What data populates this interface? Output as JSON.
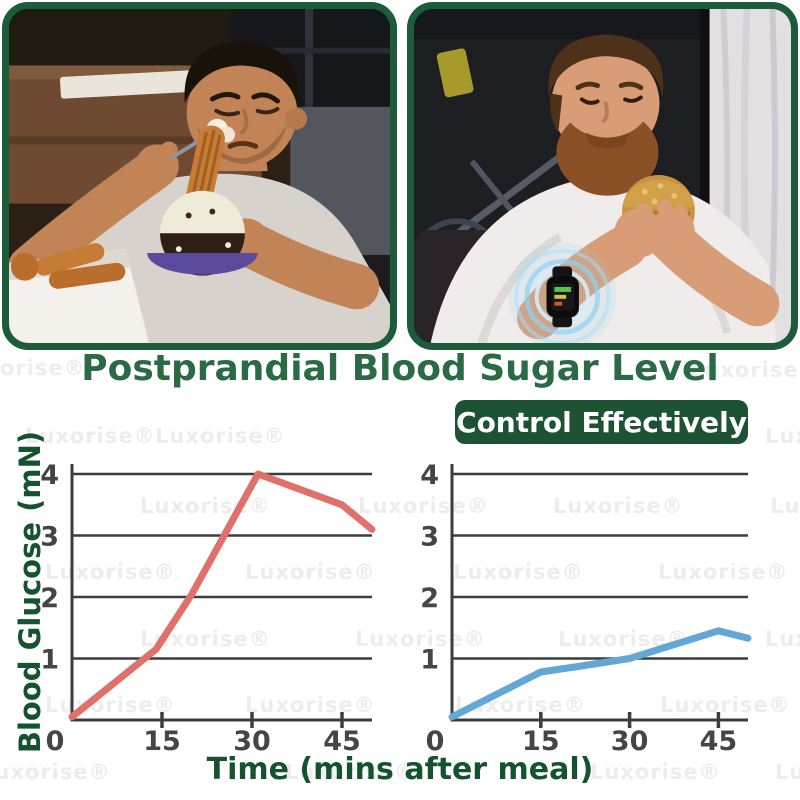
{
  "header": {
    "title": "Postprandial Blood Sugar Level",
    "badge_label": "Control Effectively"
  },
  "axis_labels": {
    "y": "Blood Glucose (mN)",
    "x": "Time (mins after meal)"
  },
  "photos": {
    "left": "Man frowning while eating churros and a cream dessert on a couch",
    "right": "Bearded man eating a burger while wearing a glowing smartwatch monitor"
  },
  "watermark": {
    "text": "Luxorise®",
    "color": "#ededed",
    "positions": [
      [
        -45,
        356
      ],
      [
        690,
        358
      ],
      [
        25,
        424
      ],
      [
        155,
        424
      ],
      [
        765,
        424
      ],
      [
        140,
        494
      ],
      [
        358,
        494
      ],
      [
        553,
        494
      ],
      [
        770,
        494
      ],
      [
        45,
        560
      ],
      [
        245,
        560
      ],
      [
        453,
        560
      ],
      [
        658,
        560
      ],
      [
        140,
        627
      ],
      [
        355,
        627
      ],
      [
        558,
        627
      ],
      [
        765,
        627
      ],
      [
        45,
        693
      ],
      [
        245,
        693
      ],
      [
        455,
        693
      ],
      [
        660,
        693
      ],
      [
        -20,
        760
      ],
      [
        285,
        760
      ],
      [
        590,
        760
      ],
      [
        775,
        760
      ]
    ]
  },
  "colors": {
    "frame_green": "#1c5c3a",
    "title_green": "#2a6b45",
    "badge_green": "#1d5233",
    "axis_dark": "#3d3d3d",
    "label_green": "#14532d",
    "red_line": "#e0706a",
    "blue_line": "#63a7d7"
  },
  "chart_data": [
    {
      "type": "line",
      "position": "left",
      "title": "",
      "xlabel": "Time (mins after meal)",
      "ylabel": "Blood Glucose (mN)",
      "xlim": [
        0,
        50
      ],
      "ylim": [
        0,
        4
      ],
      "xticks": [
        0,
        15,
        30,
        45
      ],
      "yticks": [
        1,
        2,
        3,
        4
      ],
      "grid": true,
      "legend": false,
      "series": [
        {
          "name": "uncontrolled-postprandial-spike",
          "color": "#e0706a",
          "points": [
            [
              0,
              0.05
            ],
            [
              14,
              1.15
            ],
            [
              20,
              2.05
            ],
            [
              31,
              4.0
            ],
            [
              45,
              3.5
            ],
            [
              50,
              3.1
            ]
          ]
        }
      ]
    },
    {
      "type": "line",
      "position": "right",
      "title": "",
      "xlabel": "Time (mins after meal)",
      "ylabel": "Blood Glucose (mN)",
      "xlim": [
        0,
        50
      ],
      "ylim": [
        0,
        4
      ],
      "xticks": [
        0,
        15,
        30,
        45
      ],
      "yticks": [
        1,
        2,
        3,
        4
      ],
      "grid": true,
      "legend": false,
      "series": [
        {
          "name": "controlled-postprandial-level",
          "color": "#63a7d7",
          "points": [
            [
              0,
              0.05
            ],
            [
              15,
              0.78
            ],
            [
              22,
              0.88
            ],
            [
              30,
              1.0
            ],
            [
              45,
              1.45
            ],
            [
              50,
              1.33
            ]
          ]
        }
      ]
    }
  ]
}
